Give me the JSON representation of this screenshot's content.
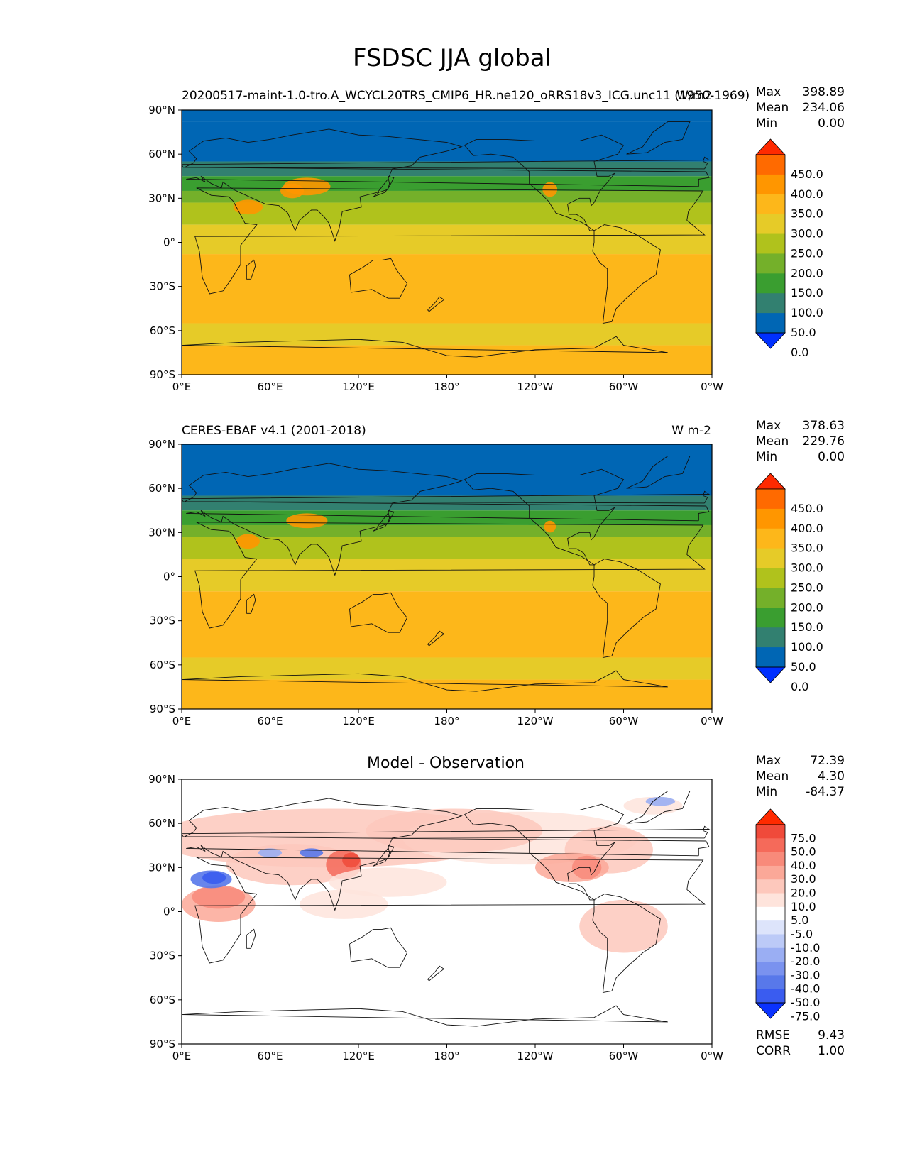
{
  "figure": {
    "title": "FSDSC JJA global"
  },
  "chart_data": [
    {
      "type": "heatmap",
      "panel": "model",
      "title_left": "20200517-maint-1.0-tro.A_WCYCL20TRS_CMIP6_HR.ne120_oRRS18v3_ICG.unc11 (1950-1969)",
      "title_center": "",
      "title_right": "W/m2",
      "stats": {
        "max_label": "Max",
        "max": "398.89",
        "mean_label": "Mean",
        "mean": "234.06",
        "min_label": "Min",
        "min": "0.00"
      },
      "xticks": [
        "0°E",
        "60°E",
        "120°E",
        "180°",
        "120°W",
        "60°W",
        "0°W"
      ],
      "yticks": [
        "90°N",
        "60°N",
        "30°N",
        "0°",
        "30°S",
        "60°S",
        "90°S"
      ],
      "colorbar": {
        "labels": [
          "450.0",
          "400.0",
          "350.0",
          "300.0",
          "250.0",
          "200.0",
          "150.0",
          "100.0",
          "50.0",
          "0.0"
        ],
        "colors": [
          "#ff2a00",
          "#ff6a00",
          "#ff9600",
          "#fdb71a",
          "#e6cb28",
          "#b0c21c",
          "#74b02a",
          "#3a9e30",
          "#328070",
          "#0066b4",
          "#0030ff"
        ]
      },
      "lat_bands_wm2": [
        {
          "lat": [
            90,
            82
          ],
          "value": 0
        },
        {
          "lat": [
            82,
            55
          ],
          "value": 25
        },
        {
          "lat": [
            55,
            45
          ],
          "value": 75
        },
        {
          "lat": [
            45,
            35
          ],
          "value": 125
        },
        {
          "lat": [
            35,
            27
          ],
          "value": 175
        },
        {
          "lat": [
            27,
            12
          ],
          "value": 225
        },
        {
          "lat": [
            12,
            -8
          ],
          "value": 275
        },
        {
          "lat": [
            -8,
            -55
          ],
          "value": 325
        },
        {
          "lat": [
            -55,
            -70
          ],
          "value": 275
        },
        {
          "lat": [
            -70,
            -90
          ],
          "value": 325
        }
      ]
    },
    {
      "type": "heatmap",
      "panel": "observation",
      "title_left": "CERES-EBAF v4.1 (2001-2018)",
      "title_center": "",
      "title_right": "W m-2",
      "stats": {
        "max_label": "Max",
        "max": "378.63",
        "mean_label": "Mean",
        "mean": "229.76",
        "min_label": "Min",
        "min": "0.00"
      },
      "xticks": [
        "0°E",
        "60°E",
        "120°E",
        "180°",
        "120°W",
        "60°W",
        "0°W"
      ],
      "yticks": [
        "90°N",
        "60°N",
        "30°N",
        "0°",
        "30°S",
        "60°S",
        "90°S"
      ],
      "colorbar": {
        "labels": [
          "450.0",
          "400.0",
          "350.0",
          "300.0",
          "250.0",
          "200.0",
          "150.0",
          "100.0",
          "50.0",
          "0.0"
        ],
        "colors": [
          "#ff2a00",
          "#ff6a00",
          "#ff9600",
          "#fdb71a",
          "#e6cb28",
          "#b0c21c",
          "#74b02a",
          "#3a9e30",
          "#328070",
          "#0066b4",
          "#0030ff"
        ]
      },
      "lat_bands_wm2": [
        {
          "lat": [
            90,
            82
          ],
          "value": 0
        },
        {
          "lat": [
            82,
            55
          ],
          "value": 25
        },
        {
          "lat": [
            55,
            45
          ],
          "value": 75
        },
        {
          "lat": [
            45,
            35
          ],
          "value": 125
        },
        {
          "lat": [
            35,
            27
          ],
          "value": 175
        },
        {
          "lat": [
            27,
            12
          ],
          "value": 225
        },
        {
          "lat": [
            12,
            -10
          ],
          "value": 275
        },
        {
          "lat": [
            -10,
            -55
          ],
          "value": 325
        },
        {
          "lat": [
            -55,
            -70
          ],
          "value": 275
        },
        {
          "lat": [
            -70,
            -90
          ],
          "value": 325
        }
      ]
    },
    {
      "type": "heatmap",
      "panel": "difference",
      "title_left": "",
      "title_center": "Model - Observation",
      "title_right": "",
      "stats": {
        "max_label": "Max",
        "max": "72.39",
        "mean_label": "Mean",
        "mean": "4.30",
        "min_label": "Min",
        "min": "-84.37"
      },
      "extra_stats": {
        "rmse_label": "RMSE",
        "rmse": "9.43",
        "corr_label": "CORR",
        "corr": "1.00"
      },
      "xticks": [
        "0°E",
        "60°E",
        "120°E",
        "180°",
        "120°W",
        "60°W",
        "0°W"
      ],
      "yticks": [
        "90°N",
        "60°N",
        "30°N",
        "0°",
        "30°S",
        "60°S",
        "90°S"
      ],
      "colorbar": {
        "labels": [
          "75.0",
          "50.0",
          "40.0",
          "30.0",
          "20.0",
          "10.0",
          "5.0",
          "-5.0",
          "-10.0",
          "-20.0",
          "-30.0",
          "-40.0",
          "-50.0",
          "-75.0"
        ],
        "colors": [
          "#ff2a00",
          "#f04a3a",
          "#f56a5a",
          "#f88a7a",
          "#fba898",
          "#fdc8bc",
          "#fee4dc",
          "#ffffff",
          "#dde4fb",
          "#bccaf7",
          "#9aaef3",
          "#7a92ef",
          "#5878ea",
          "#3a5cf0",
          "#0a32ff"
        ]
      }
    }
  ]
}
